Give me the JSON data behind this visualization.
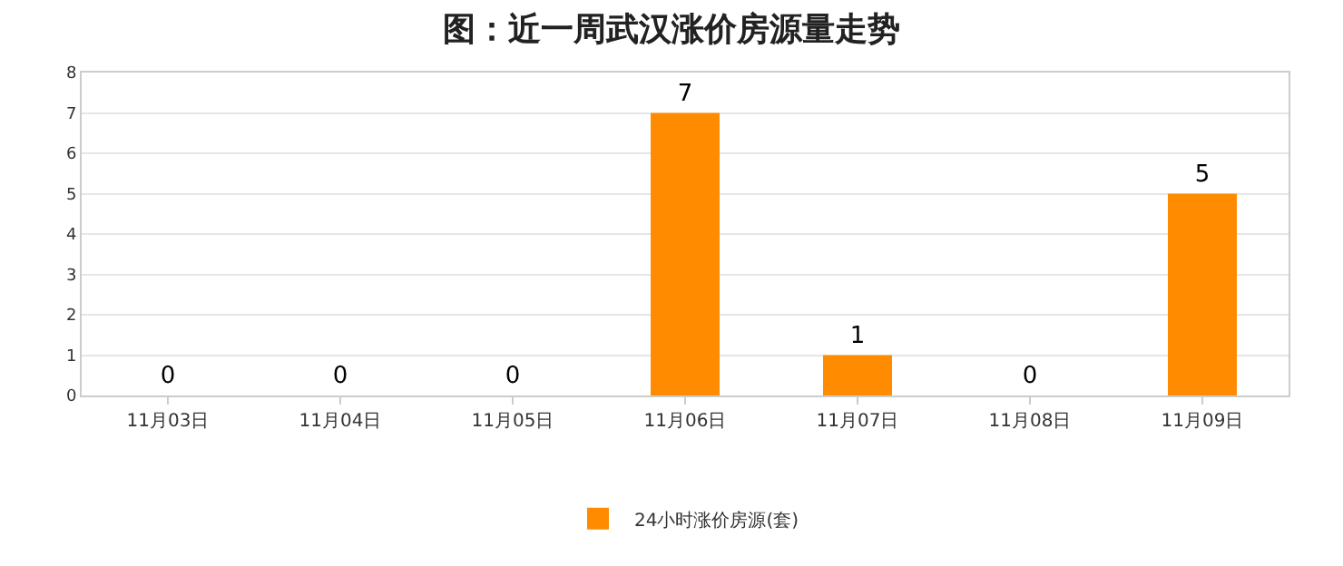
{
  "chart_data": {
    "type": "bar",
    "title": "图：近一周武汉涨价房源量走势",
    "categories": [
      "11月03日",
      "11月04日",
      "11月05日",
      "11月06日",
      "11月07日",
      "11月08日",
      "11月09日"
    ],
    "series": [
      {
        "name": "24小时涨价房源(套)",
        "color": "#ff8c00",
        "values": [
          0,
          0,
          0,
          7,
          1,
          0,
          5
        ]
      }
    ],
    "ylim": [
      0,
      8
    ],
    "yticks": [
      0,
      1,
      2,
      3,
      4,
      5,
      6,
      7,
      8
    ],
    "grid": "y",
    "legend": "bottom",
    "data_labels": true
  }
}
